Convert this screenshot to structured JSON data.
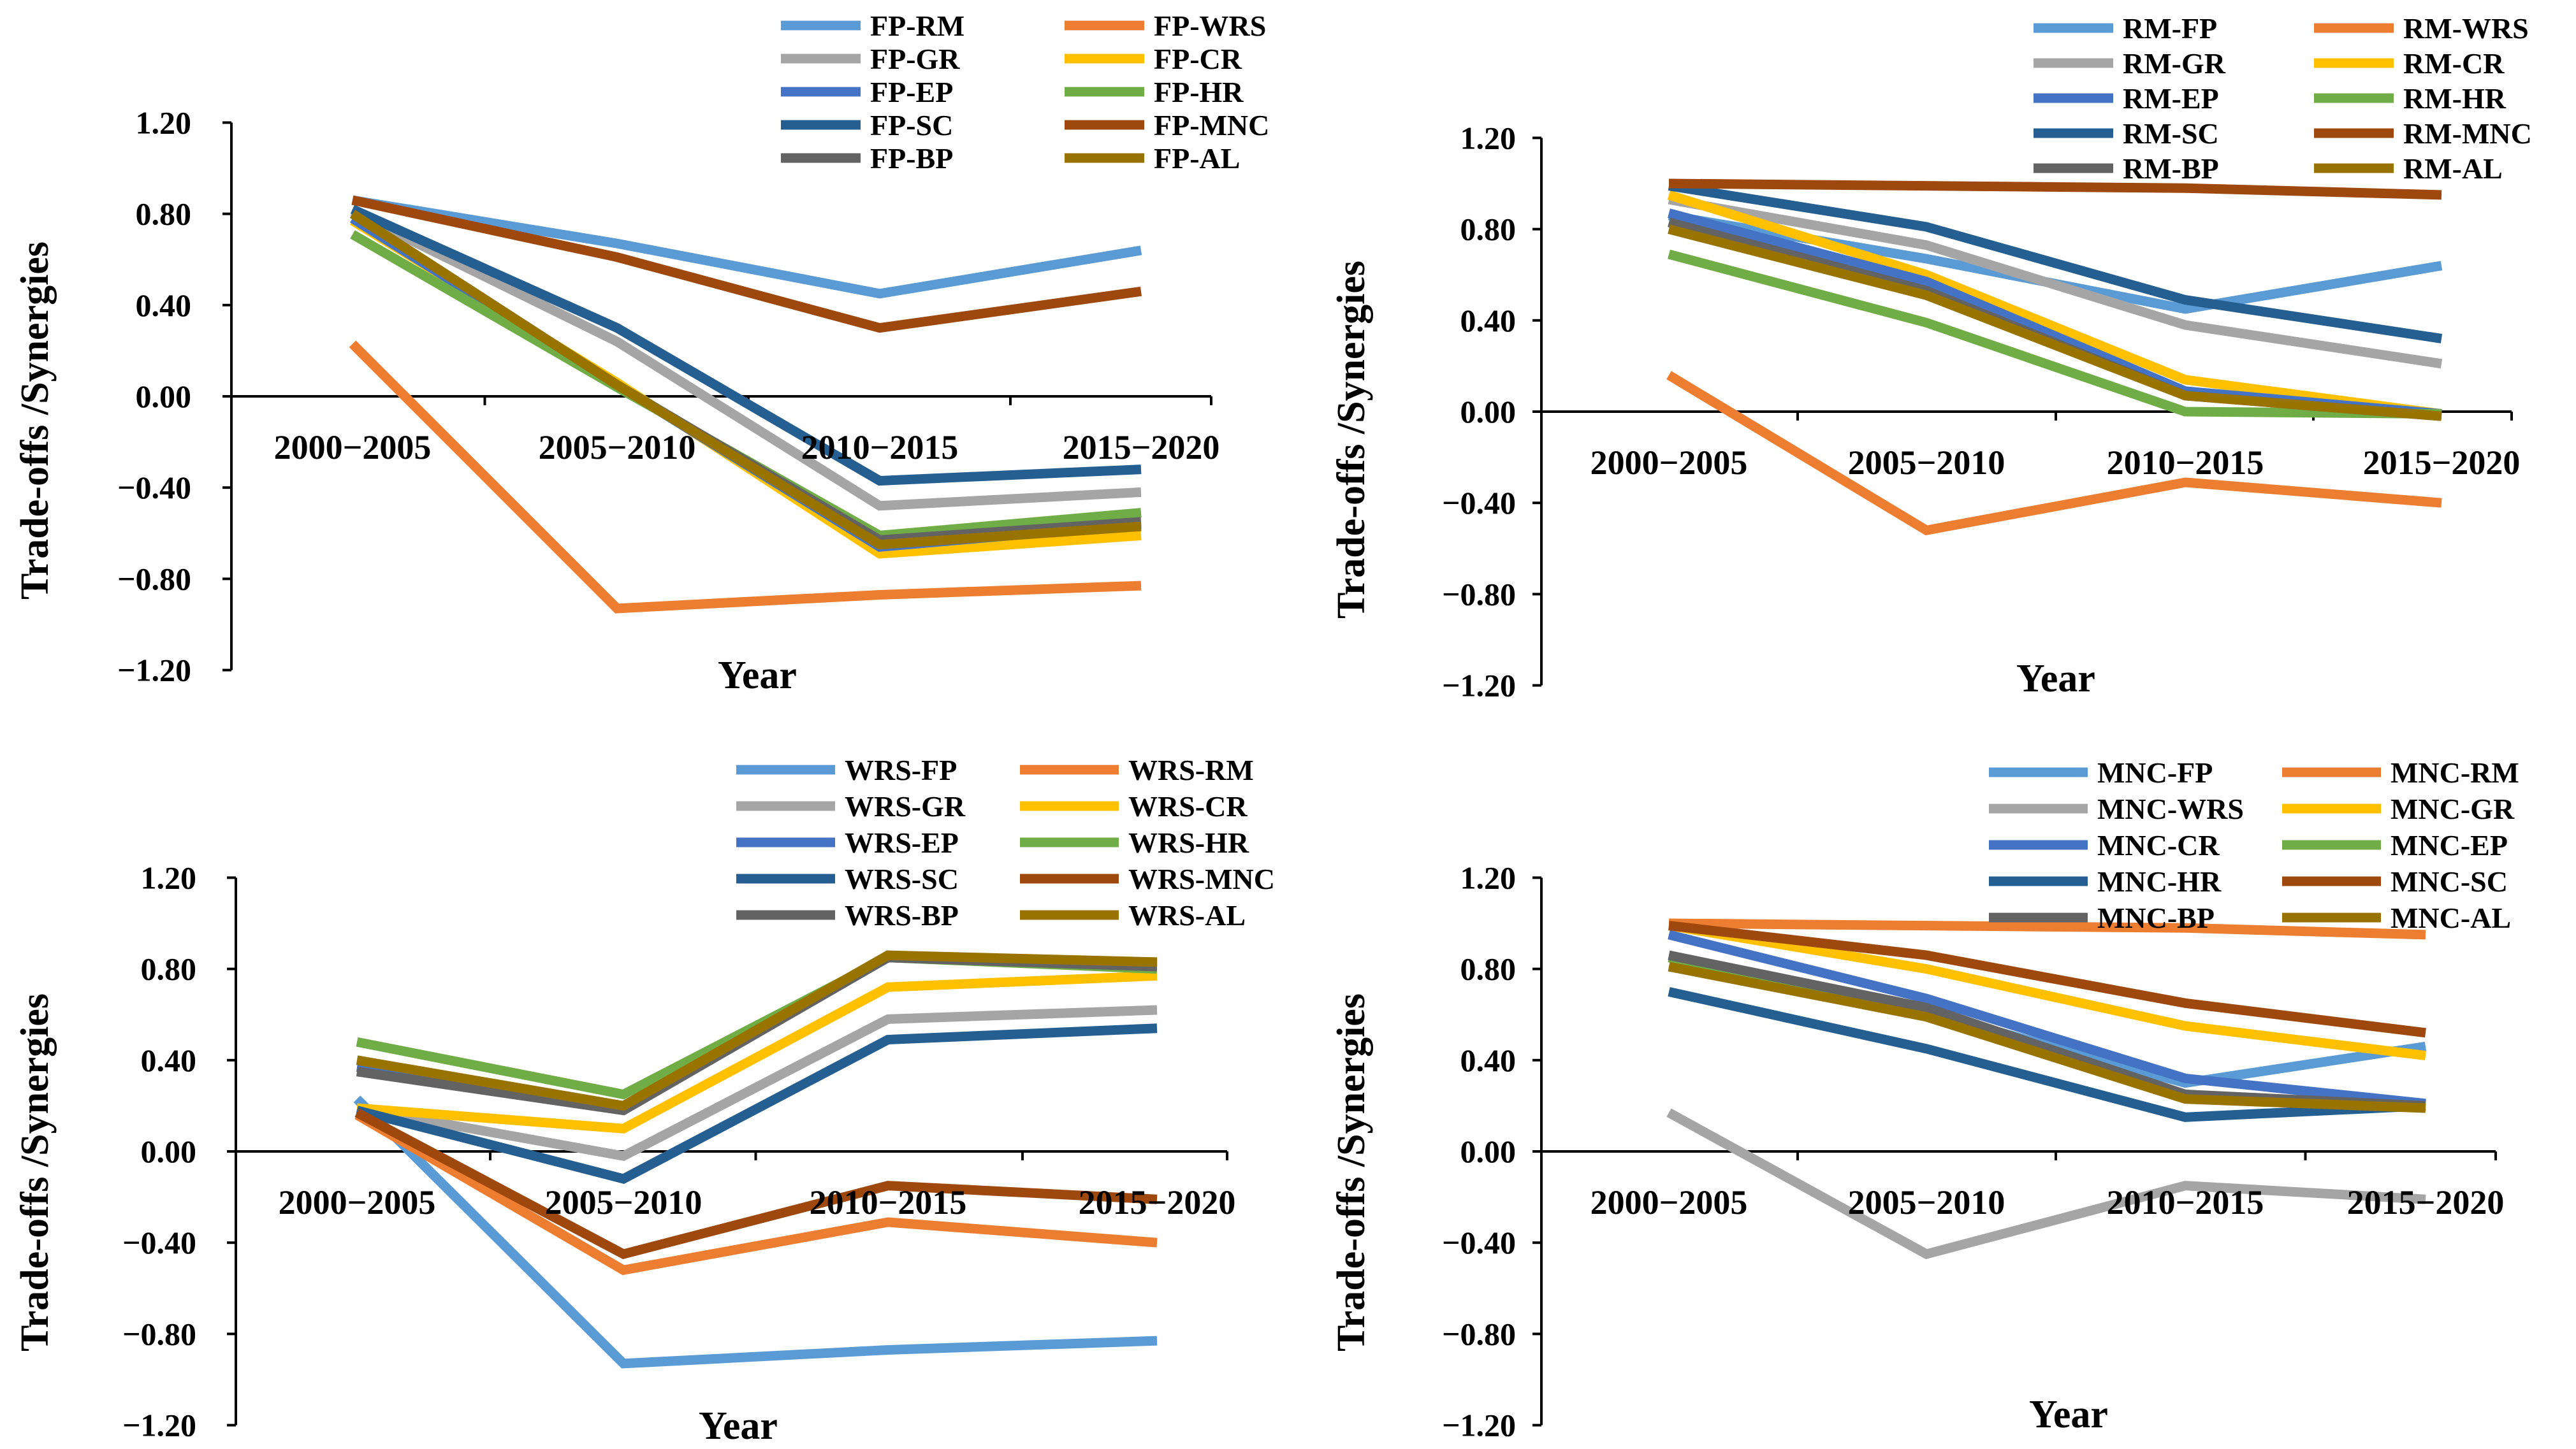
{
  "colors": {
    "light_blue": "#5B9BD5",
    "orange": "#ED7D31",
    "gray": "#A5A5A5",
    "gold": "#FFC000",
    "blue": "#4472C4",
    "green": "#70AD47",
    "dark_blue": "#255E91",
    "brown": "#9E480E",
    "dark_gray": "#636363",
    "olive": "#997300"
  },
  "chart_data": [
    {
      "type": "line",
      "title": "",
      "xlabel": "Year",
      "ylabel": "Trade-offs /Synergies",
      "ylim": [
        -1.2,
        1.2
      ],
      "yticks": [
        "1.20",
        "0.80",
        "0.40",
        "0.00",
        "−0.40",
        "−0.80",
        "−1.20"
      ],
      "ytick_values": [
        1.2,
        0.8,
        0.4,
        0.0,
        -0.4,
        -0.8,
        -1.2
      ],
      "categories": [
        "2000−2005",
        "2005−2010",
        "2010−2015",
        "2015−2020"
      ],
      "grid": false,
      "legend": "top",
      "series": [
        {
          "name": "FP-RM",
          "color": "light_blue",
          "values": [
            0.86,
            0.67,
            0.45,
            0.64
          ]
        },
        {
          "name": "FP-WRS",
          "color": "orange",
          "values": [
            0.23,
            -0.93,
            -0.87,
            -0.83
          ]
        },
        {
          "name": "FP-GR",
          "color": "gray",
          "values": [
            0.81,
            0.24,
            -0.48,
            -0.42
          ]
        },
        {
          "name": "FP-CR",
          "color": "gold",
          "values": [
            0.77,
            0.06,
            -0.69,
            -0.61
          ]
        },
        {
          "name": "FP-EP",
          "color": "blue",
          "values": [
            0.78,
            0.05,
            -0.66,
            -0.56
          ]
        },
        {
          "name": "FP-HR",
          "color": "green",
          "values": [
            0.71,
            0.04,
            -0.61,
            -0.51
          ]
        },
        {
          "name": "FP-SC",
          "color": "dark_blue",
          "values": [
            0.82,
            0.3,
            -0.37,
            -0.32
          ]
        },
        {
          "name": "FP-MNC",
          "color": "brown",
          "values": [
            0.86,
            0.61,
            0.3,
            0.46
          ]
        },
        {
          "name": "FP-BP",
          "color": "dark_gray",
          "values": [
            0.8,
            0.05,
            -0.63,
            -0.55
          ]
        },
        {
          "name": "FP-AL",
          "color": "olive",
          "values": [
            0.8,
            0.05,
            -0.65,
            -0.57
          ]
        }
      ]
    },
    {
      "type": "line",
      "title": "",
      "xlabel": "Year",
      "ylabel": "Trade-offs /Synergies",
      "ylim": [
        -1.2,
        1.2
      ],
      "yticks": [
        "1.20",
        "0.80",
        "0.40",
        "0.00",
        "−0.40",
        "−0.80",
        "−1.20"
      ],
      "ytick_values": [
        1.2,
        0.8,
        0.4,
        0.0,
        -0.4,
        -0.8,
        -1.2
      ],
      "categories": [
        "2000−2005",
        "2005−2010",
        "2010−2015",
        "2015−2020"
      ],
      "grid": false,
      "legend": "top",
      "series": [
        {
          "name": "RM-FP",
          "color": "light_blue",
          "values": [
            0.86,
            0.67,
            0.45,
            0.64
          ]
        },
        {
          "name": "RM-WRS",
          "color": "orange",
          "values": [
            0.16,
            -0.52,
            -0.31,
            -0.4
          ]
        },
        {
          "name": "RM-GR",
          "color": "gray",
          "values": [
            0.93,
            0.73,
            0.38,
            0.21
          ]
        },
        {
          "name": "RM-CR",
          "color": "gold",
          "values": [
            0.95,
            0.6,
            0.14,
            -0.01
          ]
        },
        {
          "name": "RM-EP",
          "color": "blue",
          "values": [
            0.87,
            0.57,
            0.09,
            -0.01
          ]
        },
        {
          "name": "RM-HR",
          "color": "green",
          "values": [
            0.69,
            0.39,
            0.0,
            -0.01
          ]
        },
        {
          "name": "RM-SC",
          "color": "dark_blue",
          "values": [
            0.99,
            0.81,
            0.49,
            0.32
          ]
        },
        {
          "name": "RM-MNC",
          "color": "brown",
          "values": [
            1.0,
            0.99,
            0.98,
            0.95
          ]
        },
        {
          "name": "RM-BP",
          "color": "dark_gray",
          "values": [
            0.83,
            0.53,
            0.07,
            -0.02
          ]
        },
        {
          "name": "RM-AL",
          "color": "olive",
          "values": [
            0.8,
            0.51,
            0.07,
            -0.02
          ]
        }
      ]
    },
    {
      "type": "line",
      "title": "",
      "xlabel": "Year",
      "ylabel": "Trade-offs /Synergies",
      "ylim": [
        -1.2,
        1.2
      ],
      "yticks": [
        "1.20",
        "0.80",
        "0.40",
        "0.00",
        "−0.40",
        "−0.80",
        "−1.20"
      ],
      "ytick_values": [
        1.2,
        0.8,
        0.4,
        0.0,
        -0.4,
        -0.8,
        -1.2
      ],
      "categories": [
        "2000−2005",
        "2005−2010",
        "2010−2015",
        "2015−2020"
      ],
      "grid": false,
      "legend": "top",
      "series": [
        {
          "name": "WRS-FP",
          "color": "light_blue",
          "values": [
            0.23,
            -0.93,
            -0.87,
            -0.83
          ]
        },
        {
          "name": "WRS-RM",
          "color": "orange",
          "values": [
            0.16,
            -0.52,
            -0.31,
            -0.4
          ]
        },
        {
          "name": "WRS-GR",
          "color": "gray",
          "values": [
            0.19,
            -0.02,
            0.58,
            0.62
          ]
        },
        {
          "name": "WRS-CR",
          "color": "gold",
          "values": [
            0.19,
            0.1,
            0.72,
            0.77
          ]
        },
        {
          "name": "WRS-EP",
          "color": "blue",
          "values": [
            0.37,
            0.2,
            0.85,
            0.82
          ]
        },
        {
          "name": "WRS-HR",
          "color": "green",
          "values": [
            0.48,
            0.25,
            0.85,
            0.8
          ]
        },
        {
          "name": "WRS-SC",
          "color": "dark_blue",
          "values": [
            0.18,
            -0.12,
            0.49,
            0.54
          ]
        },
        {
          "name": "WRS-MNC",
          "color": "brown",
          "values": [
            0.17,
            -0.45,
            -0.15,
            -0.21
          ]
        },
        {
          "name": "WRS-BP",
          "color": "dark_gray",
          "values": [
            0.35,
            0.18,
            0.85,
            0.81
          ]
        },
        {
          "name": "WRS-AL",
          "color": "olive",
          "values": [
            0.4,
            0.2,
            0.86,
            0.83
          ]
        }
      ]
    },
    {
      "type": "line",
      "title": "",
      "xlabel": "Year",
      "ylabel": "Trade-offs /Synergies",
      "ylim": [
        -1.2,
        1.2
      ],
      "yticks": [
        "1.20",
        "0.80",
        "0.40",
        "0.00",
        "−0.40",
        "−0.80",
        "−1.20"
      ],
      "ytick_values": [
        1.2,
        0.8,
        0.4,
        0.0,
        -0.4,
        -0.8,
        -1.2
      ],
      "categories": [
        "2000−2005",
        "2005−2010",
        "2010−2015",
        "2015−2020"
      ],
      "grid": false,
      "legend": "top",
      "series": [
        {
          "name": "MNC-FP",
          "color": "light_blue",
          "values": [
            0.86,
            0.61,
            0.3,
            0.46
          ]
        },
        {
          "name": "MNC-RM",
          "color": "orange",
          "values": [
            1.0,
            0.99,
            0.98,
            0.95
          ]
        },
        {
          "name": "MNC-WRS",
          "color": "gray",
          "values": [
            0.17,
            -0.45,
            -0.15,
            -0.21
          ]
        },
        {
          "name": "MNC-GR",
          "color": "gold",
          "values": [
            0.99,
            0.8,
            0.55,
            0.42
          ]
        },
        {
          "name": "MNC-CR",
          "color": "blue",
          "values": [
            0.95,
            0.67,
            0.32,
            0.21
          ]
        },
        {
          "name": "MNC-EP",
          "color": "green",
          "values": [
            0.85,
            0.6,
            0.25,
            0.19
          ]
        },
        {
          "name": "MNC-HR",
          "color": "dark_blue",
          "values": [
            0.7,
            0.45,
            0.15,
            0.2
          ]
        },
        {
          "name": "MNC-SC",
          "color": "brown",
          "values": [
            0.99,
            0.86,
            0.65,
            0.52
          ]
        },
        {
          "name": "MNC-BP",
          "color": "dark_gray",
          "values": [
            0.86,
            0.63,
            0.25,
            0.2
          ]
        },
        {
          "name": "MNC-AL",
          "color": "olive",
          "values": [
            0.81,
            0.59,
            0.23,
            0.19
          ]
        }
      ]
    }
  ]
}
